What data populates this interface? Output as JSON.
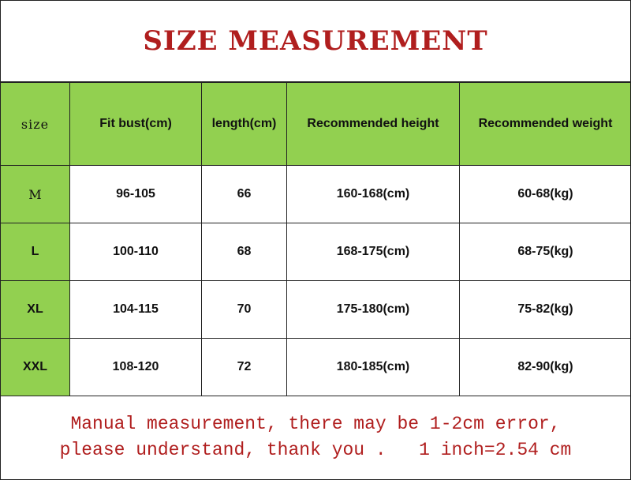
{
  "title": "SIZE MEASUREMENT",
  "colors": {
    "header_green": "#92d050",
    "title_red": "#b01e1e"
  },
  "table": {
    "headers": [
      "size",
      "Fit bust(cm)",
      "length(cm)",
      "Recommended height",
      "Recommended weight"
    ],
    "rows": [
      [
        "M",
        "96-105",
        "66",
        "160-168(cm)",
        "60-68(kg)"
      ],
      [
        "L",
        "100-110",
        "68",
        "168-175(cm)",
        "68-75(kg)"
      ],
      [
        "XL",
        "104-115",
        "70",
        "175-180(cm)",
        "75-82(kg)"
      ],
      [
        "XXL",
        "108-120",
        "72",
        "180-185(cm)",
        "82-90(kg)"
      ]
    ]
  },
  "footer": {
    "line1": "Manual measurement, there may be 1-2cm error,",
    "line2": "please understand, thank you .   1 inch=2.54 cm"
  }
}
